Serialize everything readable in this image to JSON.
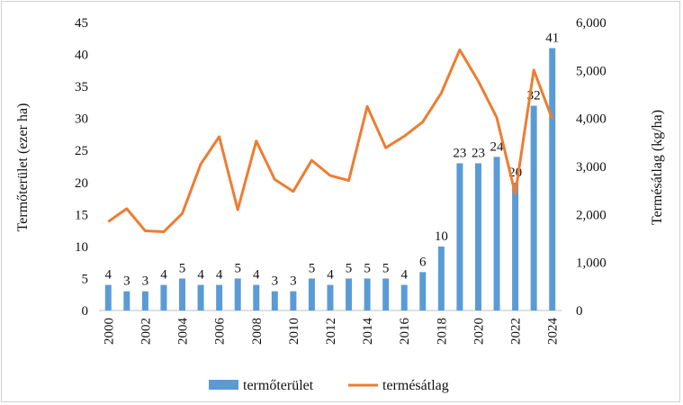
{
  "chart_data": {
    "type": "bar+line",
    "categories": [
      "2000",
      "2001",
      "2002",
      "2003",
      "2004",
      "2005",
      "2006",
      "2007",
      "2008",
      "2009",
      "2010",
      "2011",
      "2012",
      "2013",
      "2014",
      "2015",
      "2016",
      "2017",
      "2018",
      "2019",
      "2020",
      "2021",
      "2022",
      "2023",
      "2024"
    ],
    "x_tick_labels": [
      "2000",
      "2002",
      "2004",
      "2006",
      "2008",
      "2010",
      "2012",
      "2014",
      "2016",
      "2018",
      "2020",
      "2022",
      "2024"
    ],
    "series": [
      {
        "name": "termőterület",
        "type": "bar",
        "axis": "left",
        "color": "#5b9bd5",
        "values": [
          4,
          3,
          3,
          4,
          5,
          4,
          4,
          5,
          4,
          3,
          3,
          5,
          4,
          5,
          5,
          5,
          4,
          6,
          10,
          23,
          23,
          24,
          20,
          32,
          41
        ],
        "labels": [
          "4",
          "3",
          "3",
          "4",
          "5",
          "4",
          "4",
          "5",
          "4",
          "3",
          "3",
          "5",
          "4",
          "5",
          "5",
          "5",
          "4",
          "6",
          "10",
          "23",
          "23",
          "24",
          "20",
          "32",
          "41"
        ]
      },
      {
        "name": "termésátlag",
        "type": "line",
        "axis": "right",
        "color": "#ed7d31",
        "values": [
          1850,
          2120,
          1660,
          1640,
          2020,
          3050,
          3620,
          2100,
          3530,
          2730,
          2480,
          3130,
          2810,
          2710,
          4250,
          3390,
          3630,
          3930,
          4530,
          5430,
          4780,
          4020,
          2430,
          5010,
          3990
        ]
      }
    ],
    "left_axis": {
      "label": "Termőterület (ezer ha)",
      "min": 0,
      "max": 45,
      "ticks": [
        "0",
        "5",
        "10",
        "15",
        "20",
        "25",
        "30",
        "35",
        "40",
        "45"
      ]
    },
    "right_axis": {
      "label": "Termésátlag (kg/ha)",
      "min": 0,
      "max": 6000,
      "ticks": [
        "0",
        "1,000",
        "2,000",
        "3,000",
        "4,000",
        "5,000",
        "6,000"
      ]
    },
    "legend": {
      "position": "bottom",
      "items": [
        "termőterület",
        "termésátlag"
      ]
    }
  }
}
